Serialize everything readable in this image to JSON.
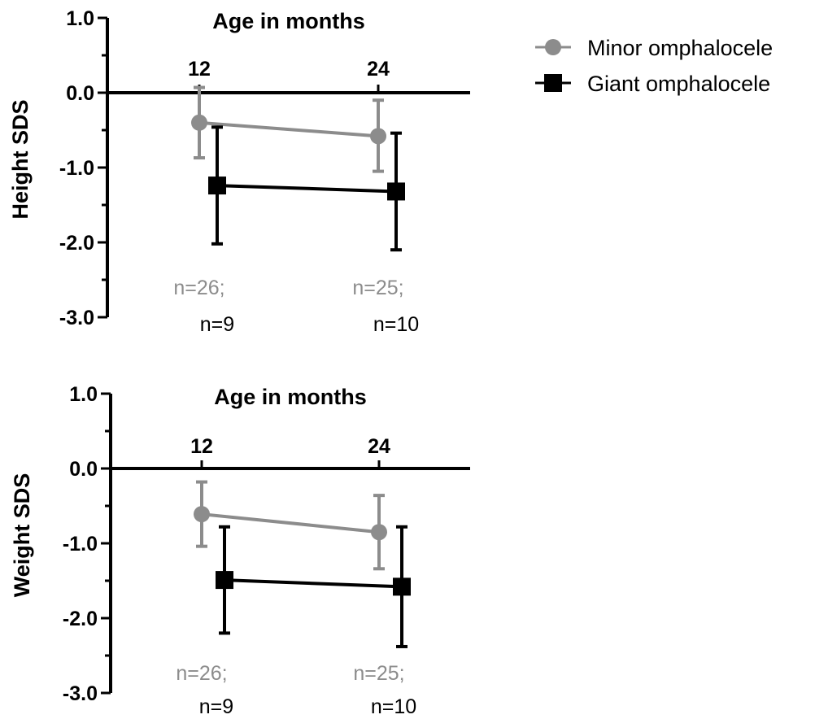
{
  "colors": {
    "minor": "#8c8c8c",
    "giant": "#000000",
    "axis": "#000000"
  },
  "legend": {
    "placement": "top-right",
    "items": [
      {
        "label": "Minor omphalocele",
        "color": "#8c8c8c",
        "marker": "circle"
      },
      {
        "label": "Giant omphalocele",
        "color": "#000000",
        "marker": "square"
      }
    ]
  },
  "chart_data": [
    {
      "type": "line",
      "title": "",
      "xlabel": "Age in months",
      "ylabel": "Height SDS",
      "ylim": [
        -3.0,
        1.0
      ],
      "yticks": [
        "1.0",
        "0.0",
        "-1.0",
        "-2.0",
        "-3.0"
      ],
      "categories": [
        "12",
        "24"
      ],
      "grid": false,
      "series": [
        {
          "name": "Minor omphalocele",
          "values": [
            -0.4,
            -0.58
          ],
          "err_low": [
            -0.87,
            -1.05
          ],
          "err_high": [
            0.07,
            -0.1
          ],
          "n": [
            "n=26;",
            "n=25;"
          ]
        },
        {
          "name": "Giant omphalocele",
          "values": [
            -1.24,
            -1.32
          ],
          "err_low": [
            -2.02,
            -2.1
          ],
          "err_high": [
            -0.46,
            -0.54
          ],
          "n": [
            "n=9",
            "n=10"
          ]
        }
      ]
    },
    {
      "type": "line",
      "title": "",
      "xlabel": "Age in months",
      "ylabel": "Weight SDS",
      "ylim": [
        -3.0,
        1.0
      ],
      "yticks": [
        "1.0",
        "0.0",
        "-1.0",
        "-2.0",
        "-3.0"
      ],
      "categories": [
        "12",
        "24"
      ],
      "grid": false,
      "series": [
        {
          "name": "Minor omphalocele",
          "values": [
            -0.61,
            -0.85
          ],
          "err_low": [
            -1.04,
            -1.34
          ],
          "err_high": [
            -0.18,
            -0.36
          ],
          "n": [
            "n=26;",
            "n=25;"
          ]
        },
        {
          "name": "Giant omphalocele",
          "values": [
            -1.49,
            -1.58
          ],
          "err_low": [
            -2.2,
            -2.38
          ],
          "err_high": [
            -0.78,
            -0.78
          ],
          "n": [
            "n=9",
            "n=10"
          ]
        }
      ]
    }
  ]
}
